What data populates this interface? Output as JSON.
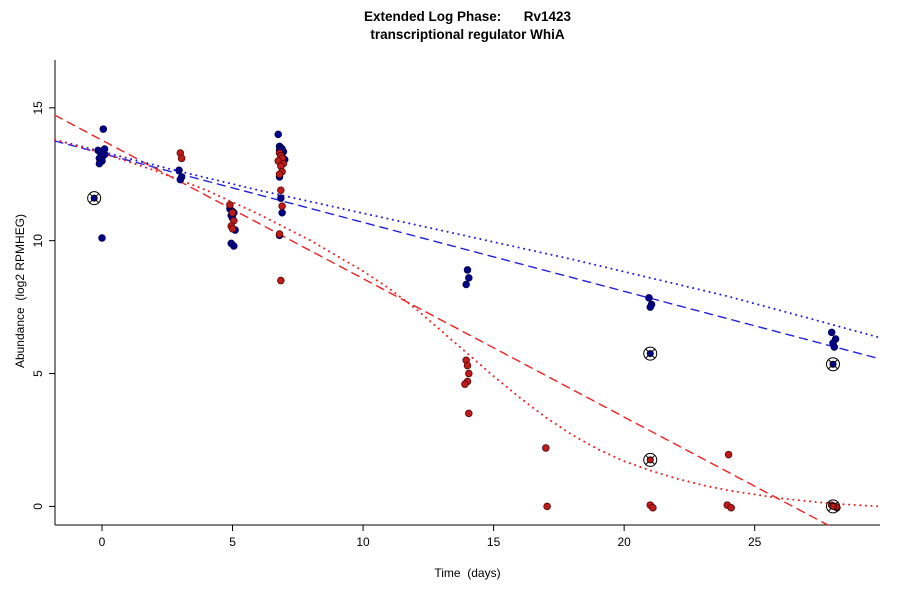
{
  "chart_data": {
    "type": "scatter",
    "title": "Extended Log Phase:      Rv1423",
    "subtitle": "transcriptional regulator WhiA",
    "xlabel": "Time  (days)",
    "ylabel": "Abundance  (log2 RPMHEG)",
    "xlim": [
      -1.8,
      29.8
    ],
    "ylim": [
      -0.7,
      16.8
    ],
    "xticks": [
      0,
      5,
      10,
      15,
      20,
      25
    ],
    "yticks": [
      0,
      5,
      10,
      15
    ],
    "grid": false,
    "legend": "none",
    "colors": {
      "blue_point": "#00008B",
      "blue_point_stroke": "#000040",
      "red_point": "#BE1B1B",
      "red_point_stroke": "#4A0000",
      "blue_line": "#2222DD",
      "red_line": "#EE2020",
      "axis": "#000000"
    },
    "series": [
      {
        "name": "blue-points",
        "marker": "dot",
        "color": "#00008B",
        "stroke": "#000040",
        "points": [
          [
            -0.15,
            13.4
          ],
          [
            -0.05,
            13.3
          ],
          [
            0.0,
            13.35
          ],
          [
            0.05,
            13.2
          ],
          [
            -0.1,
            13.1
          ],
          [
            0.1,
            13.25
          ],
          [
            0.0,
            13.0
          ],
          [
            -0.1,
            12.9
          ],
          [
            0.05,
            14.2
          ],
          [
            0.0,
            10.1
          ],
          [
            0.1,
            13.45
          ],
          [
            2.95,
            12.65
          ],
          [
            3.05,
            12.4
          ],
          [
            3.0,
            12.3
          ],
          [
            4.9,
            11.2
          ],
          [
            5.0,
            11.1
          ],
          [
            5.05,
            11.05
          ],
          [
            4.95,
            10.95
          ],
          [
            5.0,
            10.85
          ],
          [
            5.1,
            10.4
          ],
          [
            4.95,
            9.9
          ],
          [
            5.05,
            9.8
          ],
          [
            6.75,
            14.0
          ],
          [
            6.8,
            13.55
          ],
          [
            6.85,
            13.5
          ],
          [
            6.9,
            13.45
          ],
          [
            6.8,
            13.4
          ],
          [
            6.95,
            13.35
          ],
          [
            6.85,
            13.25
          ],
          [
            6.9,
            13.15
          ],
          [
            7.0,
            13.05
          ],
          [
            6.8,
            12.4
          ],
          [
            6.85,
            11.6
          ],
          [
            6.9,
            11.05
          ],
          [
            6.8,
            10.2
          ],
          [
            14.0,
            8.9
          ],
          [
            14.05,
            8.6
          ],
          [
            13.95,
            8.35
          ],
          [
            20.95,
            7.85
          ],
          [
            21.05,
            7.6
          ],
          [
            21.0,
            7.5
          ],
          [
            27.95,
            6.55
          ],
          [
            28.1,
            6.3
          ],
          [
            28.0,
            6.15
          ],
          [
            28.05,
            6.0
          ]
        ]
      },
      {
        "name": "red-points",
        "marker": "dot",
        "color": "#BE1B1B",
        "stroke": "#4A0000",
        "points": [
          [
            3.0,
            13.3
          ],
          [
            3.05,
            13.1
          ],
          [
            4.9,
            11.35
          ],
          [
            5.0,
            11.05
          ],
          [
            5.05,
            10.75
          ],
          [
            4.95,
            10.55
          ],
          [
            5.0,
            10.45
          ],
          [
            6.8,
            13.3
          ],
          [
            6.85,
            13.2
          ],
          [
            6.9,
            13.1
          ],
          [
            6.75,
            13.0
          ],
          [
            6.95,
            12.9
          ],
          [
            6.85,
            12.8
          ],
          [
            6.9,
            12.6
          ],
          [
            6.8,
            12.5
          ],
          [
            6.85,
            11.9
          ],
          [
            6.9,
            11.3
          ],
          [
            6.8,
            10.25
          ],
          [
            6.85,
            8.5
          ],
          [
            13.95,
            5.5
          ],
          [
            14.0,
            5.3
          ],
          [
            14.05,
            5.0
          ],
          [
            14.0,
            4.7
          ],
          [
            13.9,
            4.6
          ],
          [
            14.05,
            3.5
          ],
          [
            17.0,
            2.2
          ],
          [
            17.05,
            0.0
          ],
          [
            21.0,
            0.05
          ],
          [
            21.1,
            -0.05
          ],
          [
            24.0,
            1.95
          ],
          [
            23.95,
            0.05
          ],
          [
            24.1,
            -0.05
          ],
          [
            27.95,
            0.05
          ],
          [
            28.05,
            0.0
          ],
          [
            28.15,
            -0.05
          ]
        ]
      },
      {
        "name": "blue-circled-points",
        "marker": "circled-x",
        "color": "#00008B",
        "stroke": "#000000",
        "points": [
          [
            -0.3,
            11.6
          ],
          [
            21.0,
            5.75
          ],
          [
            28.0,
            5.35
          ]
        ]
      },
      {
        "name": "red-circled-points",
        "marker": "circled-x",
        "color": "#BE1B1B",
        "stroke": "#000000",
        "points": [
          [
            21.0,
            1.75
          ],
          [
            28.0,
            0.0
          ]
        ]
      }
    ],
    "lines": [
      {
        "name": "blue-dashed-fit",
        "style": "dashed",
        "color": "#2222DD",
        "width": 1.4,
        "points": [
          [
            -1.8,
            13.75
          ],
          [
            29.8,
            5.55
          ]
        ]
      },
      {
        "name": "red-dashed-fit",
        "style": "dashed",
        "color": "#EE2020",
        "width": 1.4,
        "points": [
          [
            -1.8,
            14.72
          ],
          [
            27.8,
            -0.7
          ]
        ]
      },
      {
        "name": "blue-dotted-fit",
        "style": "dotted",
        "color": "#2222DD",
        "width": 2,
        "points": [
          [
            -1.8,
            13.8
          ],
          [
            0,
            13.35
          ],
          [
            3,
            12.6
          ],
          [
            6,
            11.9
          ],
          [
            9,
            11.25
          ],
          [
            12,
            10.6
          ],
          [
            15,
            9.95
          ],
          [
            18,
            9.3
          ],
          [
            21,
            8.6
          ],
          [
            24,
            7.9
          ],
          [
            27,
            7.1
          ],
          [
            29.8,
            6.35
          ]
        ]
      },
      {
        "name": "red-dotted-fit",
        "style": "dotted",
        "color": "#EE2020",
        "width": 2,
        "points": [
          [
            -1.8,
            13.8
          ],
          [
            0,
            13.3
          ],
          [
            2,
            12.65
          ],
          [
            4,
            11.9
          ],
          [
            6,
            11.0
          ],
          [
            8,
            10.0
          ],
          [
            10,
            8.85
          ],
          [
            11,
            8.2
          ],
          [
            12,
            7.45
          ],
          [
            13,
            6.6
          ],
          [
            14,
            5.75
          ],
          [
            15,
            4.9
          ],
          [
            16,
            4.1
          ],
          [
            17,
            3.35
          ],
          [
            18,
            2.7
          ],
          [
            19,
            2.15
          ],
          [
            20,
            1.7
          ],
          [
            21,
            1.35
          ],
          [
            22,
            1.05
          ],
          [
            23,
            0.8
          ],
          [
            24,
            0.6
          ],
          [
            25,
            0.45
          ],
          [
            26,
            0.3
          ],
          [
            27,
            0.2
          ],
          [
            28,
            0.1
          ],
          [
            29.8,
            0.0
          ]
        ]
      }
    ]
  }
}
